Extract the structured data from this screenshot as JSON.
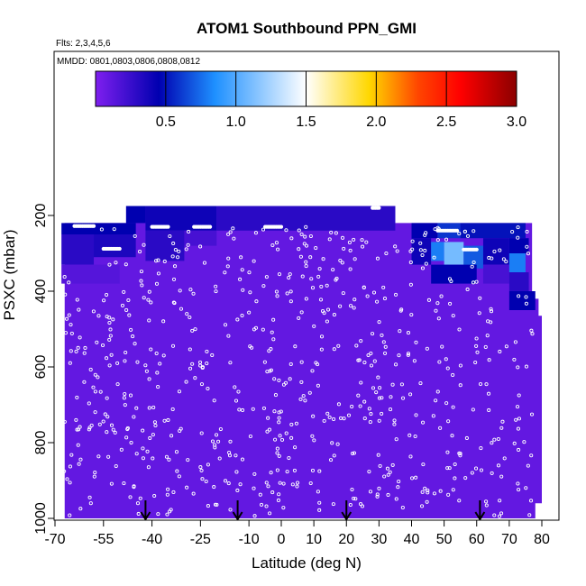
{
  "chart_data": {
    "type": "heatmap",
    "title": "ATOM1 Southbound PPN_GMI",
    "subtitle_flights": "Flts: 2,3,4,5,6",
    "subtitle_dates": "MMDD: 0801,0803,0806,0808,0812",
    "xlabel": "Latitude (deg N)",
    "ylabel": "PSXC (mbar)",
    "xlim": [
      -70,
      80
    ],
    "ylim": [
      1000,
      0
    ],
    "x_ticks": [
      -70,
      -55,
      -40,
      -25,
      -10,
      0,
      10,
      20,
      30,
      40,
      50,
      60,
      70,
      80
    ],
    "y_ticks": [
      200,
      400,
      600,
      800,
      1000
    ],
    "colorbar": {
      "range": [
        0,
        3.0
      ],
      "ticks": [
        0.5,
        1.0,
        1.5,
        2.0,
        2.5,
        3.0
      ],
      "colors": [
        "#7f1fef",
        "#0000b0",
        "#1e90ff",
        "#ffffff",
        "#ffd700",
        "#ff4500",
        "#ff0000",
        "#8b0000"
      ]
    },
    "background_value": 0.1,
    "cells": [
      {
        "lat": [
          -68,
          -45
        ],
        "p": [
          220,
          250
        ],
        "value": 0.45
      },
      {
        "lat": [
          -68,
          -58
        ],
        "p": [
          250,
          330
        ],
        "value": 0.3
      },
      {
        "lat": [
          -58,
          -45
        ],
        "p": [
          250,
          310
        ],
        "value": 0.35
      },
      {
        "lat": [
          -68,
          -50
        ],
        "p": [
          330,
          380
        ],
        "value": 0.15
      },
      {
        "lat": [
          -48,
          -42
        ],
        "p": [
          175,
          220
        ],
        "value": 0.45
      },
      {
        "lat": [
          -42,
          -20
        ],
        "p": [
          175,
          240
        ],
        "value": 0.4
      },
      {
        "lat": [
          -20,
          35
        ],
        "p": [
          175,
          240
        ],
        "value": 0.3
      },
      {
        "lat": [
          -42,
          -30
        ],
        "p": [
          240,
          320
        ],
        "value": 0.3
      },
      {
        "lat": [
          -30,
          -20
        ],
        "p": [
          240,
          280
        ],
        "value": 0.2
      },
      {
        "lat": [
          40,
          48
        ],
        "p": [
          220,
          260
        ],
        "value": 0.45
      },
      {
        "lat": [
          48,
          55
        ],
        "p": [
          220,
          260
        ],
        "value": 0.6
      },
      {
        "lat": [
          55,
          75
        ],
        "p": [
          220,
          260
        ],
        "value": 0.5
      },
      {
        "lat": [
          40,
          46
        ],
        "p": [
          260,
          330
        ],
        "value": 0.4
      },
      {
        "lat": [
          46,
          50
        ],
        "p": [
          270,
          320
        ],
        "value": 0.8
      },
      {
        "lat": [
          50,
          56
        ],
        "p": [
          270,
          330
        ],
        "value": 1.1
      },
      {
        "lat": [
          56,
          62
        ],
        "p": [
          280,
          340
        ],
        "value": 0.7
      },
      {
        "lat": [
          62,
          70
        ],
        "p": [
          260,
          330
        ],
        "value": 0.4
      },
      {
        "lat": [
          70,
          76
        ],
        "p": [
          260,
          300
        ],
        "value": 0.45
      },
      {
        "lat": [
          46,
          60
        ],
        "p": [
          330,
          380
        ],
        "value": 0.45
      },
      {
        "lat": [
          62,
          70
        ],
        "p": [
          330,
          380
        ],
        "value": 0.2
      },
      {
        "lat": [
          70,
          75
        ],
        "p": [
          300,
          350
        ],
        "value": 0.8
      },
      {
        "lat": [
          70,
          76
        ],
        "p": [
          350,
          400
        ],
        "value": 0.3
      },
      {
        "lat": [
          70,
          78
        ],
        "p": [
          400,
          450
        ],
        "value": 0.45
      }
    ],
    "arrows_lat": [
      -42,
      -13.5,
      20,
      61
    ]
  }
}
